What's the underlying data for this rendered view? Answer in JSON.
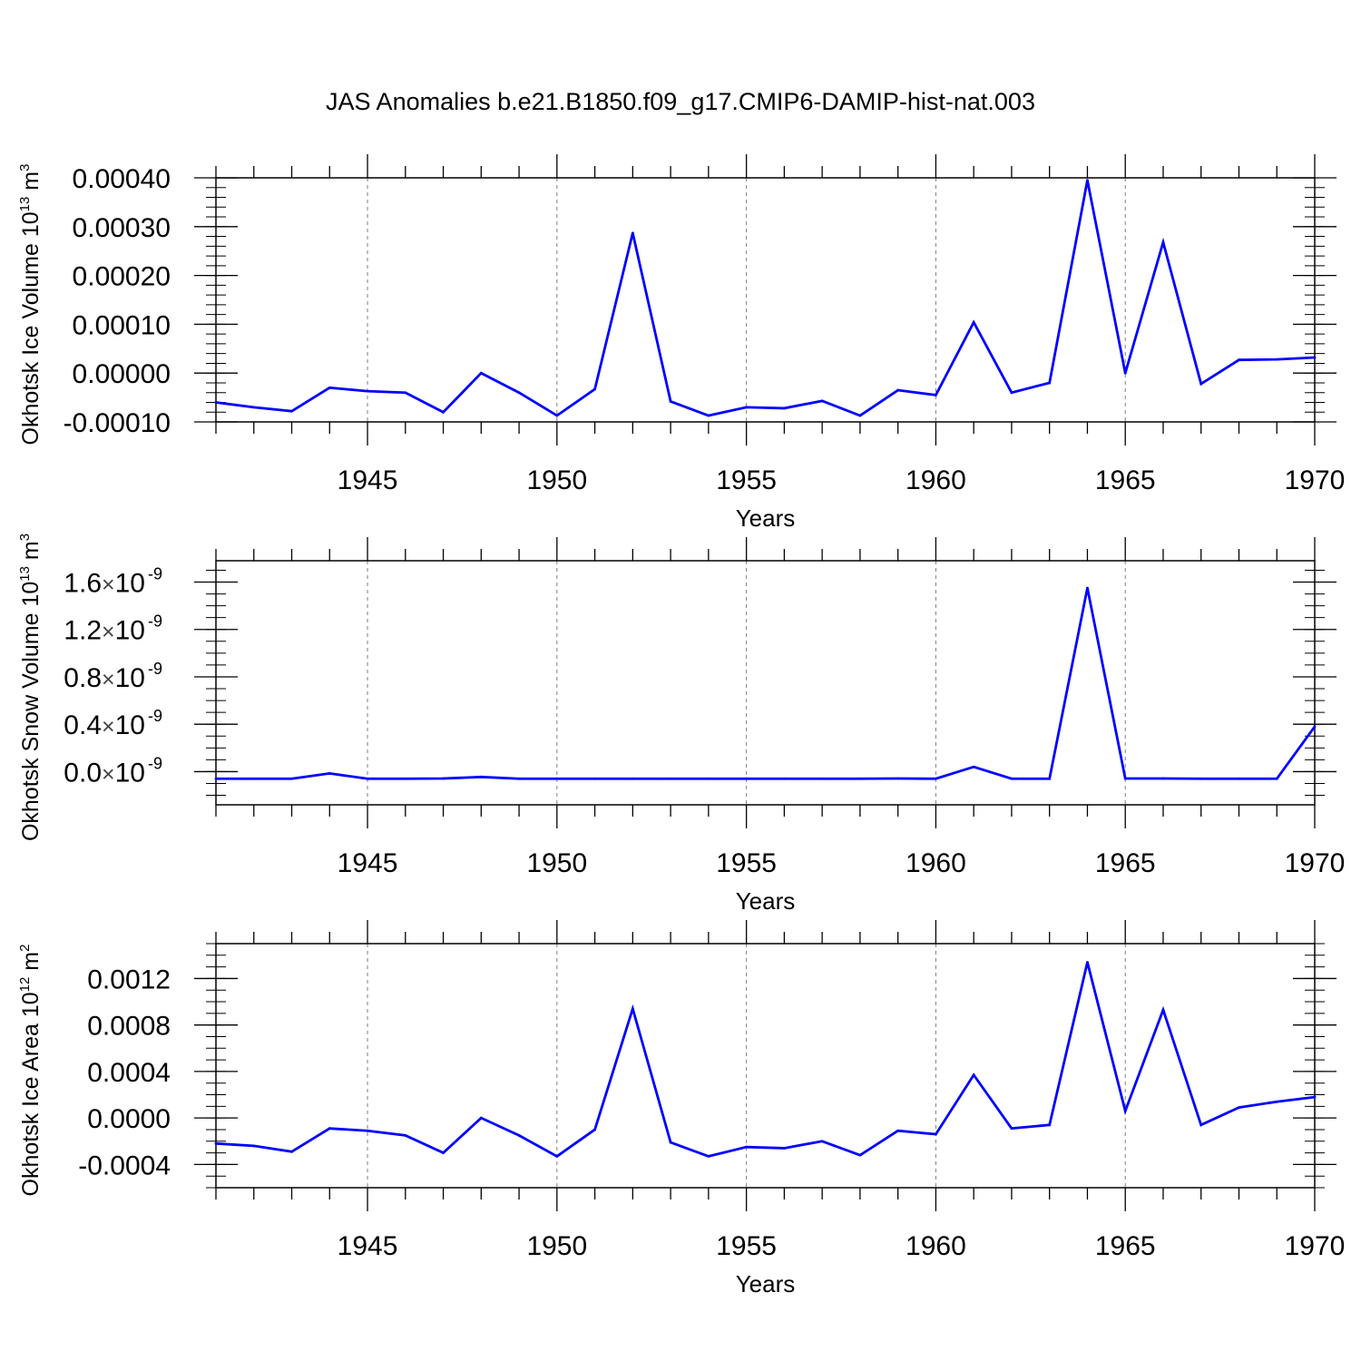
{
  "title": "JAS Anomalies b.e21.B1850.f09_g17.CMIP6-DAMIP-hist-nat.003",
  "colors": {
    "line": "#0000ff",
    "axis": "#000000",
    "grid": "#7f7f7f"
  },
  "chart_data": [
    {
      "type": "line",
      "id": "ice-volume",
      "ylabel": "Okhotsk Ice Volume",
      "ylabel_unit": "10^13 m^3",
      "ylabel_parts": {
        "base": "10",
        "exp": "13",
        "unit": "m",
        "unit_exp": "3"
      },
      "xlabel": "Years",
      "xlim": [
        1941,
        1970
      ],
      "ylim": [
        -0.0001,
        0.0004
      ],
      "x_ticks": [
        1945,
        1950,
        1955,
        1960,
        1965,
        1970
      ],
      "y_ticks": [
        -0.0001,
        0.0,
        0.0001,
        0.0002,
        0.0003,
        0.0004
      ],
      "y_tick_labels": [
        "-0.00010",
        "0.00000",
        "0.00010",
        "0.00020",
        "0.00030",
        "0.00040"
      ],
      "y_minor_step": 2e-05,
      "grid": "vertical dashed at major x ticks",
      "series": [
        {
          "name": "Ice Volume",
          "x": [
            1941,
            1942,
            1943,
            1944,
            1945,
            1946,
            1947,
            1948,
            1949,
            1950,
            1951,
            1952,
            1953,
            1954,
            1955,
            1956,
            1957,
            1958,
            1959,
            1960,
            1961,
            1962,
            1963,
            1964,
            1965,
            1966,
            1967,
            1968,
            1969,
            1970
          ],
          "values": [
            -6e-05,
            -7e-05,
            -7.8e-05,
            -3e-05,
            -3.7e-05,
            -4e-05,
            -8e-05,
            0.0,
            -4e-05,
            -8.7e-05,
            -3.3e-05,
            0.000287,
            -5.8e-05,
            -8.7e-05,
            -7e-05,
            -7.2e-05,
            -5.7e-05,
            -8.7e-05,
            -3.5e-05,
            -4.5e-05,
            0.000104,
            -4e-05,
            -2e-05,
            0.000395,
            0.0,
            0.000268,
            -2.2e-05,
            2.7e-05,
            2.8e-05,
            3.2e-05
          ]
        }
      ]
    },
    {
      "type": "line",
      "id": "snow-volume",
      "ylabel": "Okhotsk Snow Volume",
      "ylabel_unit": "10^13 m^3",
      "ylabel_parts": {
        "base": "10",
        "exp": "13",
        "unit": "m",
        "unit_exp": "3"
      },
      "xlabel": "Years",
      "xlim": [
        1941,
        1970
      ],
      "ylim": [
        -2.8e-10,
        1.78e-09
      ],
      "x_ticks": [
        1945,
        1950,
        1955,
        1960,
        1965,
        1970
      ],
      "y_ticks": [
        0.0,
        4e-10,
        8e-10,
        1.2e-09,
        1.6e-09
      ],
      "y_tick_labels": [
        {
          "mant": "0.0",
          "times": "×",
          "base": "10",
          "exp": "-9"
        },
        {
          "mant": "0.4",
          "times": "×",
          "base": "10",
          "exp": "-9"
        },
        {
          "mant": "0.8",
          "times": "×",
          "base": "10",
          "exp": "-9"
        },
        {
          "mant": "1.2",
          "times": "×",
          "base": "10",
          "exp": "-9"
        },
        {
          "mant": "1.6",
          "times": "×",
          "base": "10",
          "exp": "-9"
        }
      ],
      "y_minor_step": 1e-10,
      "grid": "vertical dashed at major x ticks",
      "series": [
        {
          "name": "Snow Volume",
          "x": [
            1941,
            1942,
            1943,
            1944,
            1945,
            1946,
            1947,
            1948,
            1949,
            1950,
            1951,
            1952,
            1953,
            1954,
            1955,
            1956,
            1957,
            1958,
            1959,
            1960,
            1961,
            1962,
            1963,
            1964,
            1965,
            1966,
            1967,
            1968,
            1969,
            1970
          ],
          "values": [
            -6e-11,
            -6e-11,
            -6e-11,
            -1.5e-11,
            -6e-11,
            -6e-11,
            -5.8e-11,
            -4.5e-11,
            -6e-11,
            -6e-11,
            -6e-11,
            -6e-11,
            -6e-11,
            -6e-11,
            -6e-11,
            -6e-11,
            -6e-11,
            -6e-11,
            -5.8e-11,
            -6e-11,
            4e-11,
            -6e-11,
            -6e-11,
            1.55e-09,
            -5.8e-11,
            -5.8e-11,
            -6e-11,
            -6e-11,
            -6e-11,
            3.8e-10
          ]
        }
      ]
    },
    {
      "type": "line",
      "id": "ice-area",
      "ylabel": "Okhotsk Ice Area",
      "ylabel_unit": "10^12 m^2",
      "ylabel_parts": {
        "base": "10",
        "exp": "12",
        "unit": "m",
        "unit_exp": "2"
      },
      "xlabel": "Years",
      "xlim": [
        1941,
        1970
      ],
      "ylim": [
        -0.0006,
        0.0015
      ],
      "x_ticks": [
        1945,
        1950,
        1955,
        1960,
        1965,
        1970
      ],
      "y_ticks": [
        -0.0004,
        0.0,
        0.0004,
        0.0008,
        0.0012
      ],
      "y_tick_labels": [
        "-0.0004",
        "0.0000",
        "0.0004",
        "0.0008",
        "0.0012"
      ],
      "y_minor_step": 0.0001,
      "grid": "vertical dashed at major x ticks",
      "series": [
        {
          "name": "Ice Area",
          "x": [
            1941,
            1942,
            1943,
            1944,
            1945,
            1946,
            1947,
            1948,
            1949,
            1950,
            1951,
            1952,
            1953,
            1954,
            1955,
            1956,
            1957,
            1958,
            1959,
            1960,
            1961,
            1962,
            1963,
            1964,
            1965,
            1966,
            1967,
            1968,
            1969,
            1970
          ],
          "values": [
            -0.00022,
            -0.00024,
            -0.00029,
            -9e-05,
            -0.00011,
            -0.00015,
            -0.0003,
            0.0,
            -0.00015,
            -0.00033,
            -0.0001,
            0.00094,
            -0.00021,
            -0.00033,
            -0.00025,
            -0.00026,
            -0.0002,
            -0.00032,
            -0.00011,
            -0.00014,
            0.00037,
            -9e-05,
            -6e-05,
            0.00134,
            6e-05,
            0.00093,
            -6e-05,
            9e-05,
            0.00014,
            0.00018
          ]
        }
      ]
    }
  ]
}
